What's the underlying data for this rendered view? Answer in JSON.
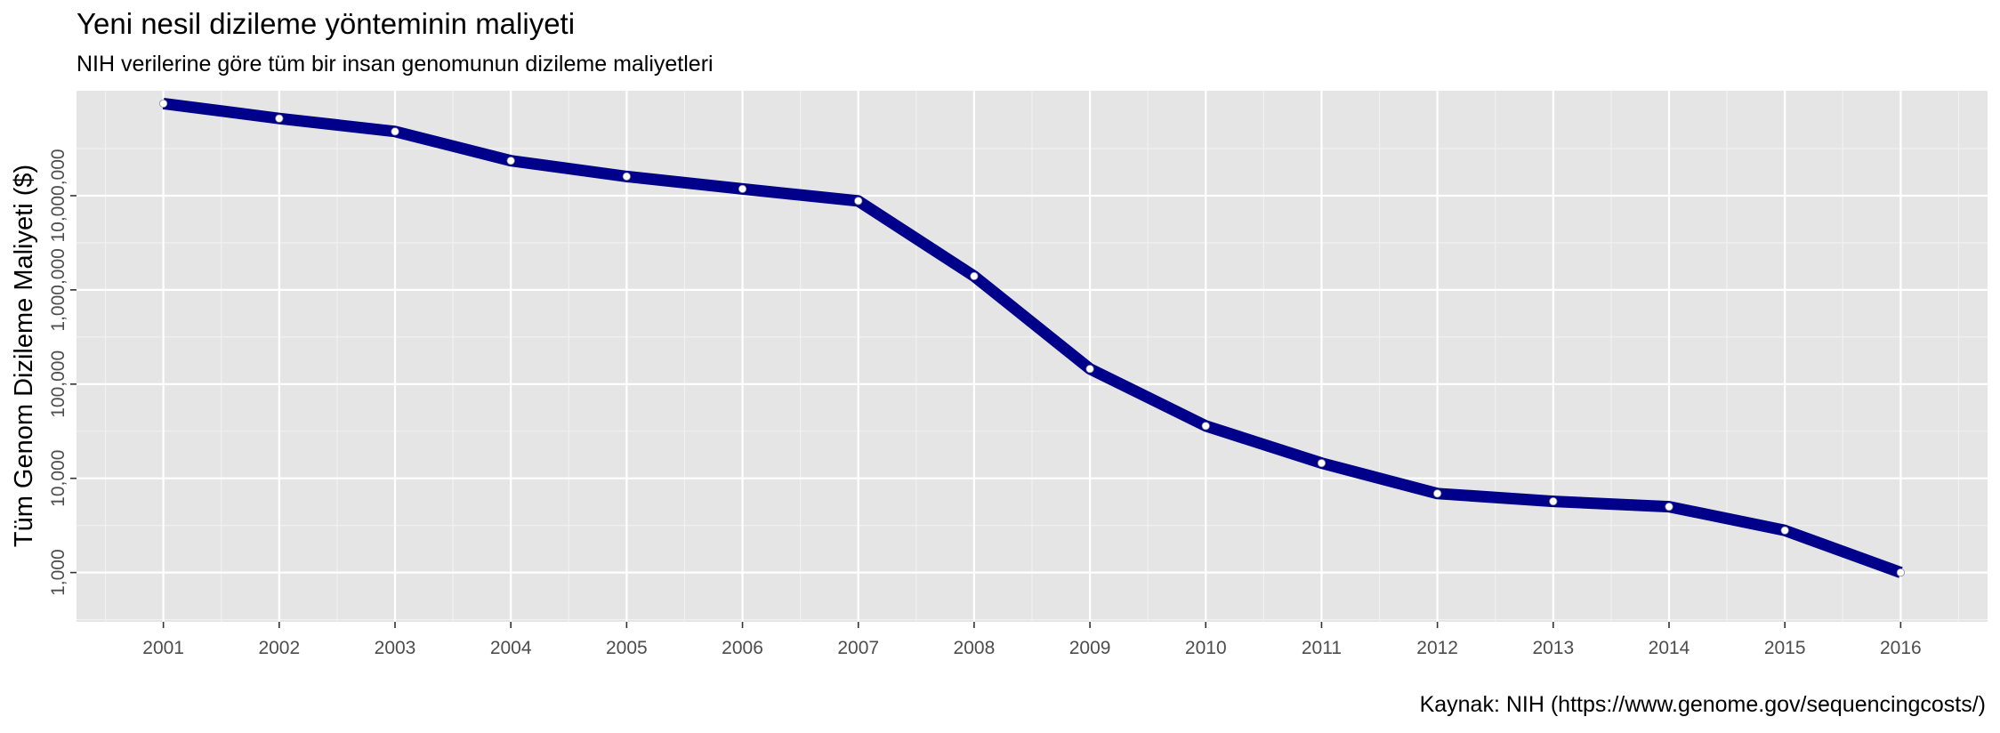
{
  "chart_data": {
    "type": "line",
    "title": "Yeni nesil dizileme yönteminin maliyeti",
    "subtitle": "NIH verilerine göre tüm bir insan genomunun dizileme maliyetleri",
    "caption": "Kaynak: NIH (https://www.genome.gov/sequencingcosts/)",
    "xlabel": "",
    "ylabel": "Tüm Genom Dizileme Maliyeti ($)",
    "y_scale": "log10",
    "ylim": [
      300,
      130000000
    ],
    "xlim": [
      2000.25,
      2016.75
    ],
    "grid": true,
    "x_ticks": [
      "2001",
      "2002",
      "2003",
      "2004",
      "2005",
      "2006",
      "2007",
      "2008",
      "2009",
      "2010",
      "2011",
      "2012",
      "2013",
      "2014",
      "2015",
      "2016"
    ],
    "y_ticks": [
      {
        "value": 1000,
        "label": "1,000"
      },
      {
        "value": 10000,
        "label": "10,000"
      },
      {
        "value": 100000,
        "label": "100,000"
      },
      {
        "value": 1000000,
        "label": "1,000,000"
      },
      {
        "value": 10000000,
        "label": "10,000,000"
      }
    ],
    "series": [
      {
        "color": "#00008b",
        "x": [
          2001,
          2002,
          2003,
          2004,
          2005,
          2006,
          2007,
          2008,
          2009,
          2010,
          2011,
          2012,
          2013,
          2014,
          2015,
          2016
        ],
        "values": [
          95000000,
          66000000,
          48000000,
          23500000,
          16000000,
          11800000,
          8800000,
          1400000,
          145000,
          36000,
          14500,
          6900,
          5700,
          5000,
          2800,
          1000
        ]
      }
    ]
  }
}
